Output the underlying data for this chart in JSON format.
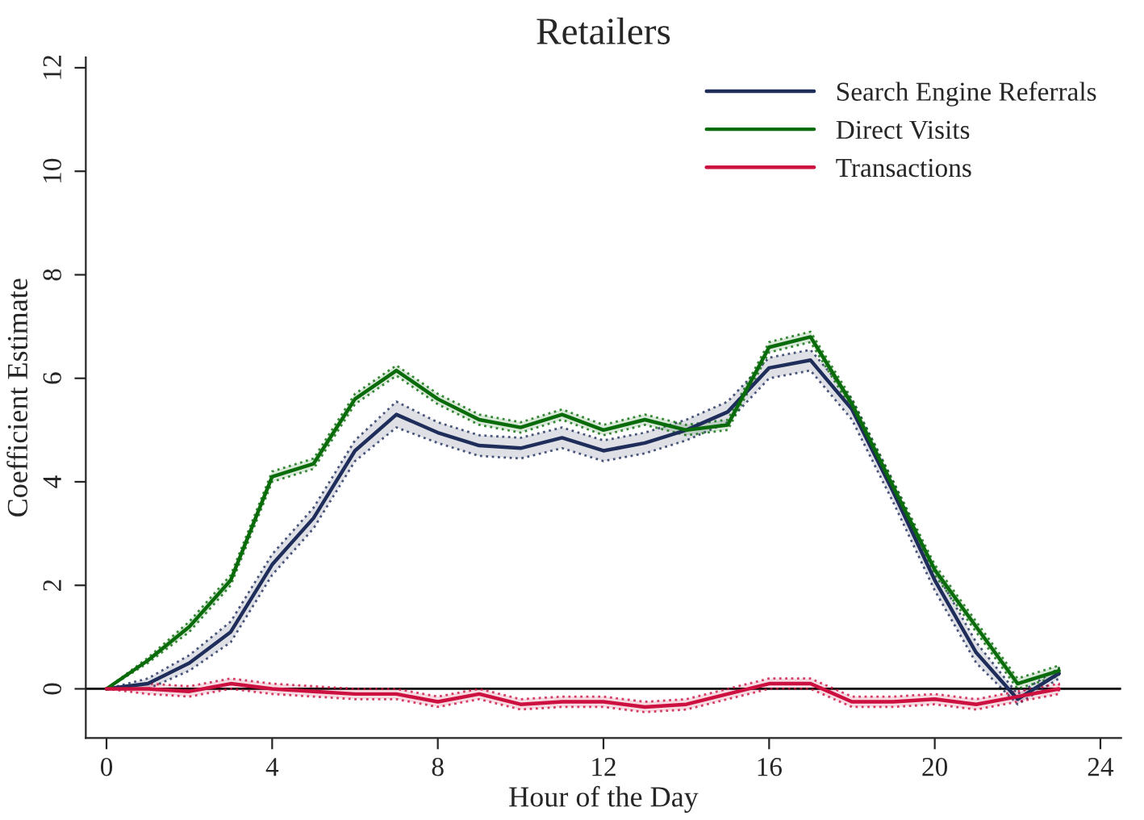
{
  "chart_data": {
    "type": "line",
    "title": "Retailers",
    "xlabel": "Hour of the Day",
    "ylabel": "Coefficient Estimate",
    "x": [
      0,
      1,
      2,
      3,
      4,
      5,
      6,
      7,
      8,
      9,
      10,
      11,
      12,
      13,
      14,
      15,
      16,
      17,
      18,
      19,
      20,
      21,
      22,
      23
    ],
    "series": [
      {
        "name": "Search Engine Referrals",
        "color": "#1f2d5a",
        "values": [
          0,
          0.1,
          0.5,
          1.1,
          2.4,
          3.3,
          4.6,
          5.3,
          4.95,
          4.7,
          4.65,
          4.85,
          4.6,
          4.75,
          5.0,
          5.35,
          6.2,
          6.35,
          5.4,
          3.8,
          2.1,
          0.7,
          -0.2,
          0.3
        ],
        "lower": [
          0,
          0,
          0.35,
          0.9,
          2.2,
          3.1,
          4.4,
          5.05,
          4.75,
          4.5,
          4.45,
          4.65,
          4.4,
          4.55,
          4.8,
          5.15,
          6.0,
          6.15,
          5.2,
          3.6,
          1.9,
          0.5,
          -0.3,
          0.2
        ],
        "upper": [
          0,
          0.2,
          0.65,
          1.3,
          2.6,
          3.5,
          4.8,
          5.55,
          5.15,
          4.9,
          4.85,
          5.05,
          4.8,
          4.95,
          5.2,
          5.55,
          6.4,
          6.55,
          5.6,
          4.0,
          2.3,
          0.9,
          -0.1,
          0.4
        ]
      },
      {
        "name": "Direct Visits",
        "color": "#0a6b0a",
        "values": [
          0,
          0.55,
          1.2,
          2.1,
          4.1,
          4.35,
          5.6,
          6.15,
          5.6,
          5.2,
          5.05,
          5.3,
          5.0,
          5.2,
          5.0,
          5.1,
          6.6,
          6.8,
          5.5,
          3.9,
          2.3,
          1.2,
          0.1,
          0.35
        ],
        "lower": [
          0,
          0.5,
          1.1,
          2.0,
          4.0,
          4.25,
          5.5,
          6.05,
          5.5,
          5.1,
          4.95,
          5.2,
          4.9,
          5.1,
          4.9,
          5.0,
          6.5,
          6.7,
          5.4,
          3.8,
          2.2,
          1.1,
          0.0,
          0.25
        ],
        "upper": [
          0,
          0.6,
          1.3,
          2.2,
          4.2,
          4.45,
          5.7,
          6.25,
          5.7,
          5.3,
          5.15,
          5.4,
          5.1,
          5.3,
          5.1,
          5.2,
          6.7,
          6.9,
          5.6,
          4.0,
          2.4,
          1.3,
          0.2,
          0.45
        ]
      },
      {
        "name": "Transactions",
        "color": "#cc1040",
        "values": [
          0,
          0,
          -0.05,
          0.1,
          0,
          -0.05,
          -0.1,
          -0.1,
          -0.25,
          -0.1,
          -0.3,
          -0.25,
          -0.25,
          -0.35,
          -0.3,
          -0.1,
          0.1,
          0.1,
          -0.25,
          -0.25,
          -0.2,
          -0.3,
          -0.15,
          0.0
        ],
        "lower": [
          0,
          -0.1,
          -0.15,
          0,
          -0.1,
          -0.15,
          -0.2,
          -0.2,
          -0.35,
          -0.2,
          -0.4,
          -0.35,
          -0.35,
          -0.45,
          -0.4,
          -0.2,
          0,
          0,
          -0.35,
          -0.35,
          -0.3,
          -0.4,
          -0.25,
          -0.1
        ],
        "upper": [
          0,
          0.1,
          0.05,
          0.2,
          0.1,
          0.05,
          0,
          0,
          -0.15,
          0,
          -0.2,
          -0.15,
          -0.15,
          -0.25,
          -0.2,
          0,
          0.2,
          0.2,
          -0.15,
          -0.15,
          -0.1,
          -0.2,
          -0.05,
          0.1
        ]
      }
    ],
    "xlim": [
      -0.5,
      24.5
    ],
    "xticks": [
      0,
      4,
      8,
      12,
      16,
      20,
      24
    ],
    "ylim": [
      -0.95,
      12.2
    ],
    "yticks": [
      0,
      2,
      4,
      6,
      8,
      10,
      12
    ],
    "ref_lines": [
      {
        "axis": "y",
        "value": 0,
        "color": "#000000"
      }
    ],
    "legend": "top right",
    "grid": false,
    "marker": "none",
    "line_style": "solid"
  }
}
